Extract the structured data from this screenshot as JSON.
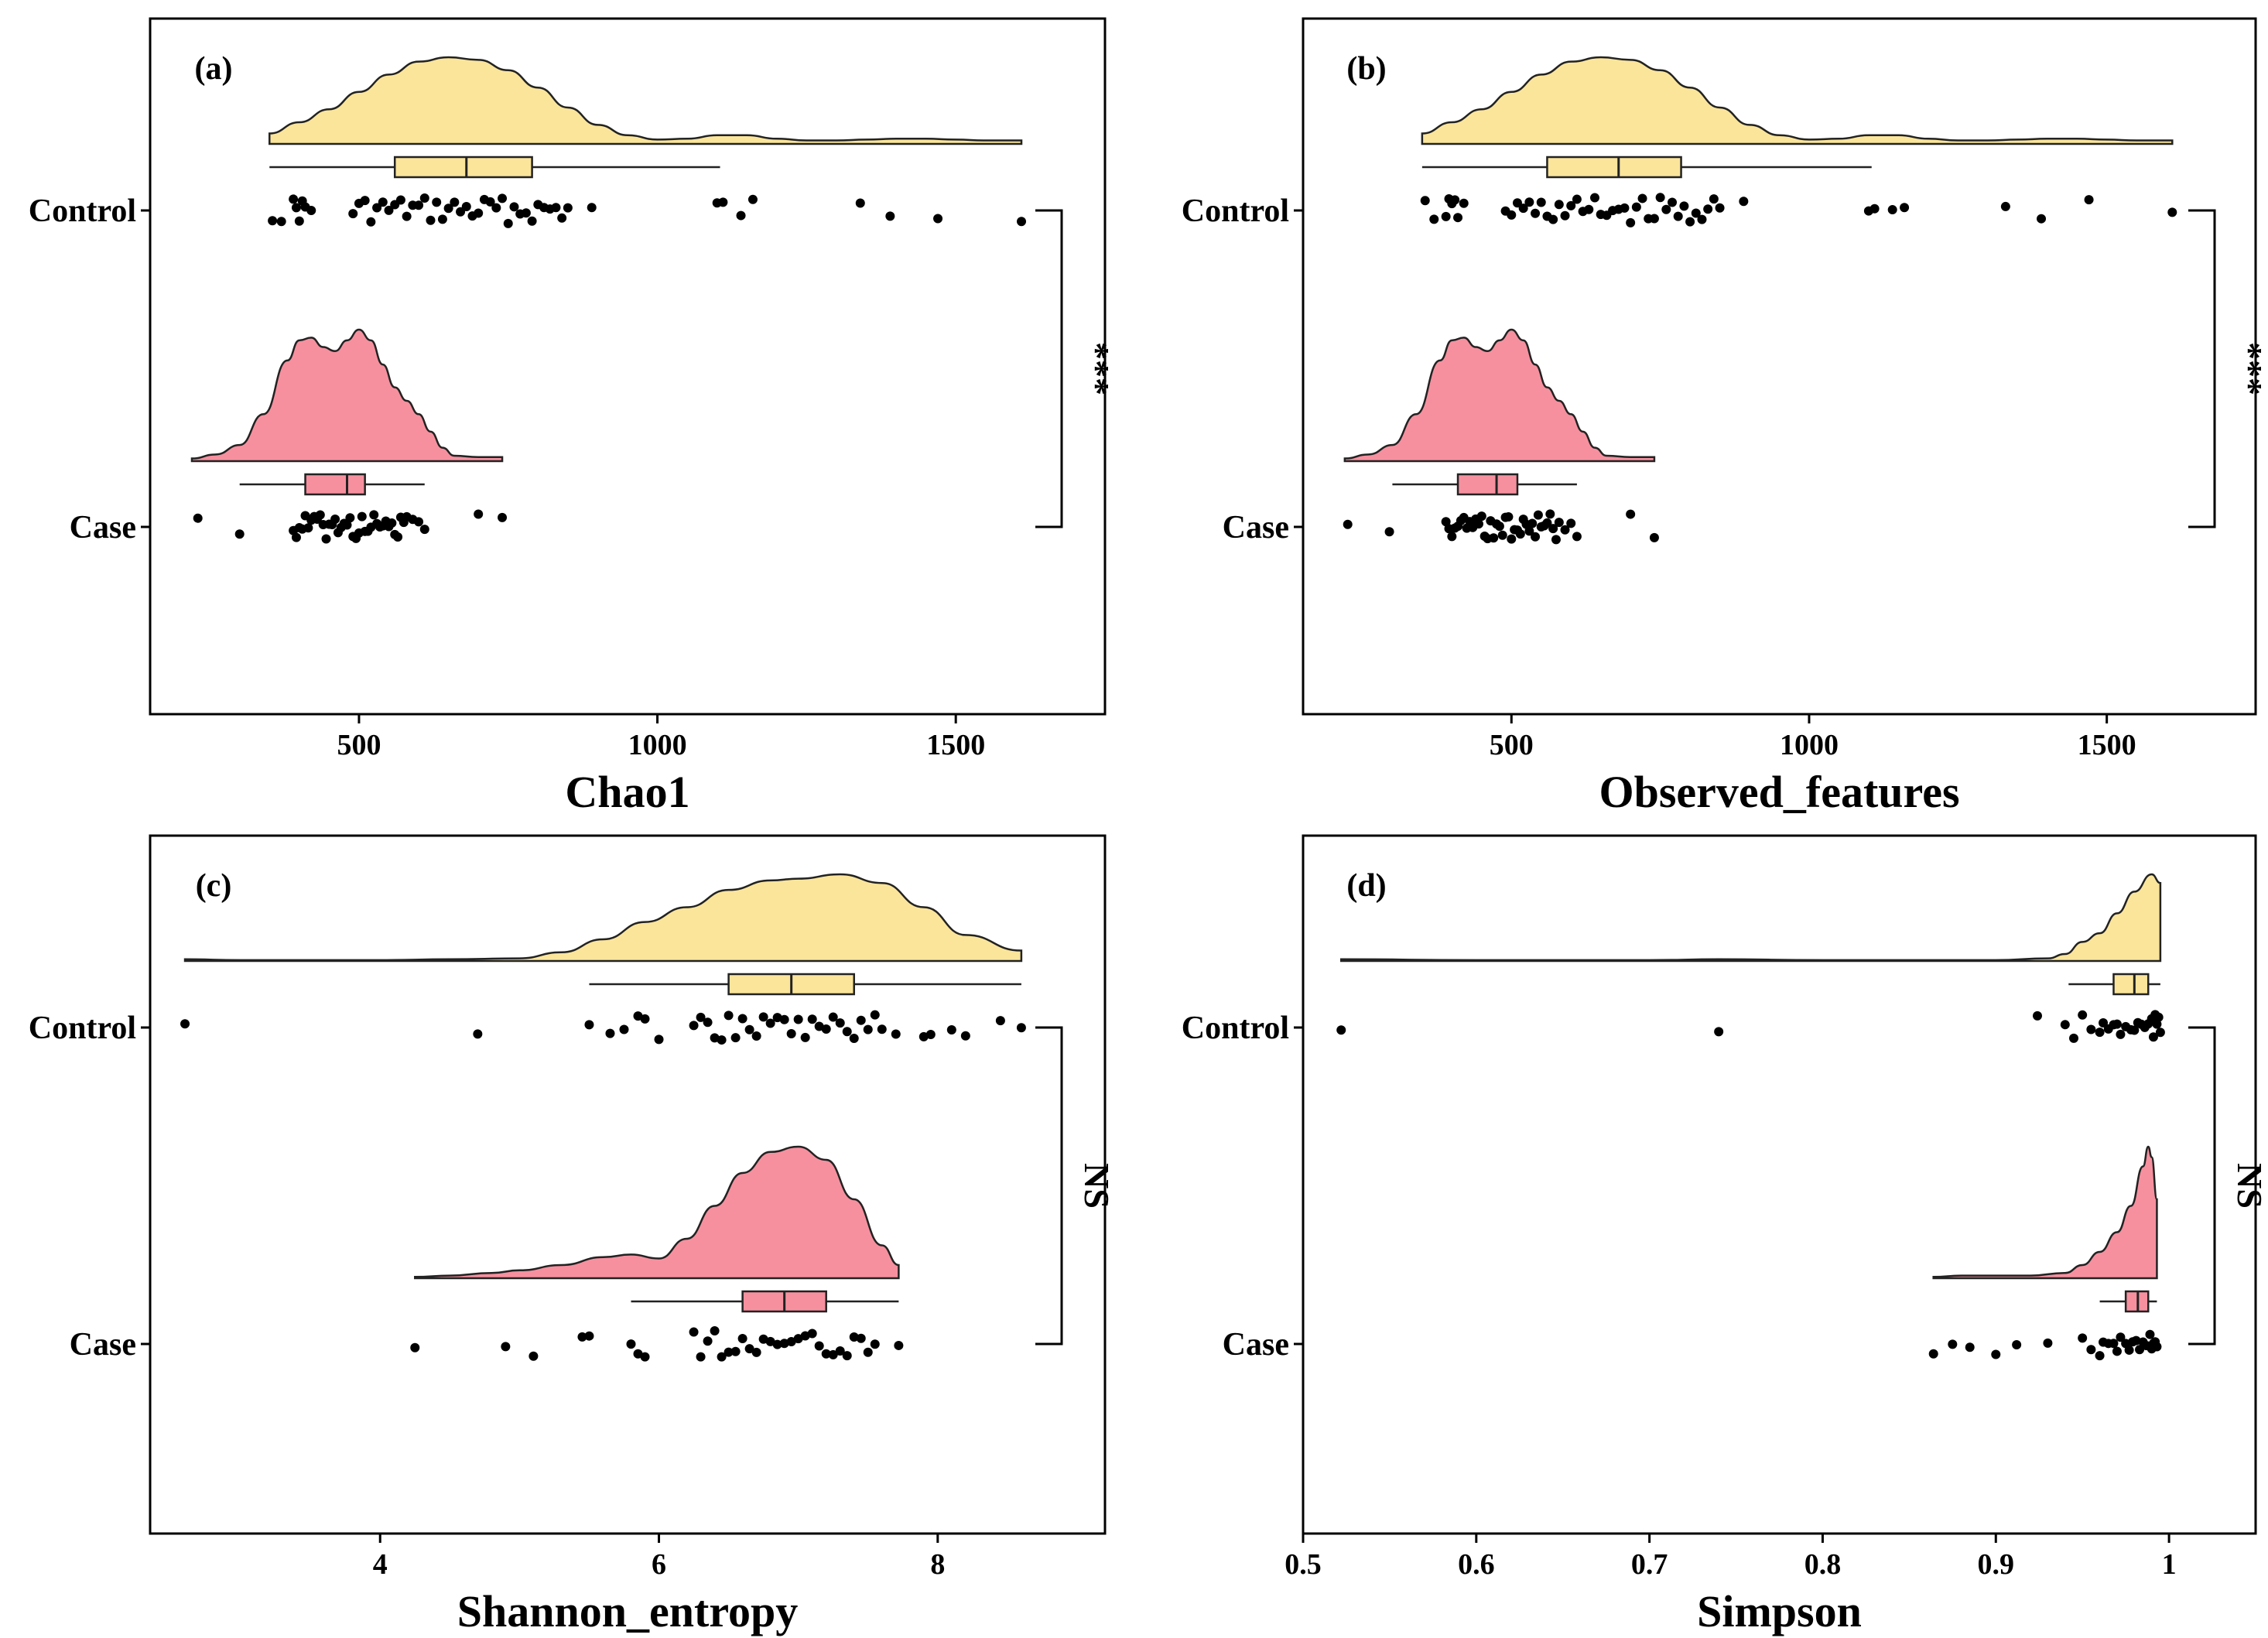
{
  "colors": {
    "control": "#FBE59B",
    "case": "#F6909F",
    "outline": "#222222",
    "points": "#000000"
  },
  "chart_data": [
    {
      "panel": "(a)",
      "type": "raincloud",
      "xlabel": "Chao1",
      "xlim": [
        150,
        1750
      ],
      "xticks": [
        500,
        1000,
        1500
      ],
      "categories": [
        "Control",
        "Case"
      ],
      "significance": "***",
      "groups": [
        {
          "name": "Control",
          "box": {
            "whisker_low": 350,
            "q1": 560,
            "median": 680,
            "q3": 790,
            "whisker_high": 1105
          },
          "density": {
            "x": [
              350,
              400,
              450,
              500,
              550,
              600,
              650,
              700,
              750,
              800,
              850,
              900,
              950,
              1000,
              1050,
              1100,
              1150,
              1200,
              1250,
              1300,
              1350,
              1400,
              1450,
              1500,
              1550,
              1610
            ],
            "y": [
              0.12,
              0.25,
              0.4,
              0.6,
              0.8,
              0.95,
              1.0,
              0.97,
              0.85,
              0.65,
              0.42,
              0.22,
              0.1,
              0.05,
              0.06,
              0.1,
              0.1,
              0.06,
              0.04,
              0.04,
              0.05,
              0.06,
              0.06,
              0.05,
              0.04,
              0.04
            ]
          },
          "points": [
            355,
            370,
            390,
            395,
            400,
            405,
            410,
            420,
            490,
            500,
            510,
            520,
            530,
            540,
            550,
            560,
            570,
            580,
            590,
            600,
            610,
            620,
            630,
            640,
            650,
            660,
            670,
            680,
            690,
            700,
            710,
            720,
            730,
            740,
            750,
            760,
            770,
            780,
            790,
            800,
            810,
            820,
            830,
            840,
            850,
            890,
            1100,
            1110,
            1140,
            1160,
            1340,
            1390,
            1470,
            1610
          ]
        },
        {
          "name": "Case",
          "box": {
            "whisker_low": 300,
            "q1": 410,
            "median": 480,
            "q3": 510,
            "whisker_high": 610
          },
          "density": {
            "x": [
              220,
              260,
              300,
              340,
              380,
              400,
              420,
              440,
              460,
              480,
              500,
              520,
              540,
              560,
              580,
              600,
              620,
              640,
              660,
              700,
              740
            ],
            "y": [
              0.02,
              0.05,
              0.12,
              0.35,
              0.75,
              0.9,
              0.92,
              0.85,
              0.82,
              0.9,
              0.98,
              0.9,
              0.72,
              0.55,
              0.45,
              0.35,
              0.22,
              0.1,
              0.04,
              0.03,
              0.03
            ]
          },
          "points": [
            230,
            300,
            390,
            395,
            400,
            405,
            410,
            415,
            420,
            425,
            430,
            435,
            440,
            445,
            450,
            455,
            460,
            465,
            470,
            475,
            480,
            485,
            490,
            495,
            500,
            505,
            510,
            515,
            520,
            525,
            530,
            535,
            540,
            545,
            550,
            555,
            560,
            565,
            570,
            575,
            580,
            590,
            600,
            610,
            700,
            740
          ]
        }
      ]
    },
    {
      "panel": "(b)",
      "type": "raincloud",
      "xlabel": "Observed_features",
      "xlim": [
        150,
        1750
      ],
      "xticks": [
        500,
        1000,
        1500
      ],
      "categories": [
        "Control",
        "Case"
      ],
      "significance": "***",
      "groups": [
        {
          "name": "Control",
          "box": {
            "whisker_low": 350,
            "q1": 560,
            "median": 680,
            "q3": 785,
            "whisker_high": 1105
          },
          "density": {
            "x": [
              350,
              400,
              450,
              500,
              550,
              600,
              650,
              700,
              750,
              800,
              850,
              900,
              950,
              1000,
              1050,
              1100,
              1150,
              1200,
              1250,
              1300,
              1350,
              1400,
              1450,
              1500,
              1550,
              1610
            ],
            "y": [
              0.12,
              0.25,
              0.4,
              0.6,
              0.8,
              0.95,
              1.0,
              0.97,
              0.85,
              0.65,
              0.42,
              0.22,
              0.1,
              0.05,
              0.06,
              0.1,
              0.1,
              0.06,
              0.04,
              0.04,
              0.05,
              0.06,
              0.06,
              0.05,
              0.04,
              0.04
            ]
          },
          "points": [
            355,
            370,
            390,
            395,
            400,
            405,
            410,
            420,
            490,
            500,
            510,
            520,
            530,
            540,
            550,
            560,
            570,
            580,
            590,
            600,
            610,
            620,
            630,
            640,
            650,
            660,
            670,
            680,
            690,
            700,
            710,
            720,
            730,
            740,
            750,
            760,
            770,
            780,
            790,
            800,
            810,
            820,
            830,
            840,
            850,
            890,
            1100,
            1110,
            1140,
            1160,
            1330,
            1390,
            1470,
            1610
          ]
        },
        {
          "name": "Case",
          "box": {
            "whisker_low": 300,
            "q1": 410,
            "median": 475,
            "q3": 510,
            "whisker_high": 610
          },
          "density": {
            "x": [
              220,
              260,
              300,
              340,
              380,
              400,
              420,
              440,
              460,
              480,
              500,
              520,
              540,
              560,
              580,
              600,
              620,
              640,
              660,
              700,
              740
            ],
            "y": [
              0.02,
              0.05,
              0.12,
              0.35,
              0.75,
              0.9,
              0.92,
              0.85,
              0.82,
              0.9,
              0.98,
              0.9,
              0.72,
              0.55,
              0.45,
              0.35,
              0.22,
              0.1,
              0.04,
              0.03,
              0.03
            ]
          },
          "points": [
            225,
            295,
            390,
            395,
            400,
            405,
            410,
            415,
            420,
            425,
            430,
            435,
            440,
            445,
            450,
            455,
            460,
            465,
            470,
            475,
            480,
            485,
            490,
            495,
            500,
            505,
            510,
            515,
            520,
            525,
            530,
            535,
            540,
            545,
            550,
            555,
            560,
            565,
            570,
            575,
            580,
            590,
            600,
            610,
            700,
            740
          ]
        }
      ]
    },
    {
      "panel": "(c)",
      "type": "raincloud",
      "xlabel": "Shannon_entropy",
      "xlim": [
        2.35,
        9.2
      ],
      "xticks": [
        4,
        6,
        8
      ],
      "categories": [
        "Control",
        "Case"
      ],
      "significance": "NS",
      "groups": [
        {
          "name": "Control",
          "box": {
            "whisker_low": 5.5,
            "q1": 6.5,
            "median": 6.95,
            "q3": 7.4,
            "whisker_high": 8.6
          },
          "density": {
            "x": [
              2.6,
              3.0,
              3.5,
              4.0,
              4.5,
              5.0,
              5.3,
              5.6,
              5.9,
              6.2,
              6.5,
              6.8,
              7.0,
              7.3,
              7.6,
              7.9,
              8.2,
              8.6
            ],
            "y": [
              0.02,
              0.01,
              0.01,
              0.01,
              0.02,
              0.03,
              0.1,
              0.25,
              0.45,
              0.62,
              0.82,
              0.93,
              0.95,
              1.0,
              0.9,
              0.62,
              0.3,
              0.12
            ]
          },
          "points": [
            2.6,
            4.7,
            5.5,
            5.65,
            5.75,
            5.85,
            5.9,
            6.0,
            6.25,
            6.3,
            6.35,
            6.4,
            6.45,
            6.5,
            6.55,
            6.6,
            6.65,
            6.7,
            6.75,
            6.8,
            6.85,
            6.9,
            6.95,
            7.0,
            7.05,
            7.1,
            7.15,
            7.2,
            7.25,
            7.3,
            7.35,
            7.4,
            7.45,
            7.5,
            7.55,
            7.6,
            7.7,
            7.9,
            7.95,
            8.1,
            8.2,
            8.45,
            8.6
          ]
        },
        {
          "name": "Case",
          "box": {
            "whisker_low": 5.8,
            "q1": 6.6,
            "median": 6.9,
            "q3": 7.2,
            "whisker_high": 7.72
          },
          "density": {
            "x": [
              4.25,
              4.5,
              4.8,
              5.0,
              5.3,
              5.6,
              5.8,
              6.0,
              6.2,
              6.4,
              6.6,
              6.8,
              7.0,
              7.2,
              7.4,
              7.6,
              7.72
            ],
            "y": [
              0.01,
              0.02,
              0.04,
              0.06,
              0.1,
              0.16,
              0.18,
              0.15,
              0.3,
              0.55,
              0.8,
              0.96,
              1.0,
              0.9,
              0.6,
              0.25,
              0.1
            ]
          },
          "points": [
            4.25,
            4.9,
            5.1,
            5.45,
            5.5,
            5.8,
            5.85,
            5.9,
            6.25,
            6.3,
            6.35,
            6.4,
            6.45,
            6.5,
            6.55,
            6.6,
            6.65,
            6.7,
            6.75,
            6.8,
            6.85,
            6.9,
            6.95,
            7.0,
            7.05,
            7.1,
            7.15,
            7.2,
            7.25,
            7.3,
            7.35,
            7.4,
            7.45,
            7.5,
            7.55,
            7.72
          ]
        }
      ]
    },
    {
      "panel": "(d)",
      "type": "raincloud",
      "xlabel": "Simpson",
      "xlim": [
        0.5,
        1.05
      ],
      "xticks": [
        0.5,
        0.6,
        0.7,
        0.8,
        0.9,
        1.0
      ],
      "categories": [
        "Control",
        "Case"
      ],
      "significance": "NS",
      "groups": [
        {
          "name": "Control",
          "box": {
            "whisker_low": 0.942,
            "q1": 0.968,
            "median": 0.98,
            "q3": 0.988,
            "whisker_high": 0.995
          },
          "density": {
            "x": [
              0.522,
              0.6,
              0.7,
              0.74,
              0.8,
              0.9,
              0.93,
              0.94,
              0.95,
              0.96,
              0.97,
              0.98,
              0.99,
              0.995
            ],
            "y": [
              0.02,
              0.01,
              0.01,
              0.02,
              0.01,
              0.01,
              0.03,
              0.08,
              0.22,
              0.32,
              0.55,
              0.8,
              1.0,
              0.9
            ]
          },
          "points": [
            0.522,
            0.74,
            0.924,
            0.94,
            0.945,
            0.95,
            0.955,
            0.96,
            0.962,
            0.965,
            0.968,
            0.97,
            0.972,
            0.975,
            0.978,
            0.98,
            0.982,
            0.984,
            0.986,
            0.988,
            0.99,
            0.991,
            0.992,
            0.993,
            0.994,
            0.995
          ]
        },
        {
          "name": "Case",
          "box": {
            "whisker_low": 0.96,
            "q1": 0.975,
            "median": 0.982,
            "q3": 0.988,
            "whisker_high": 0.993
          },
          "density": {
            "x": [
              0.864,
              0.88,
              0.9,
              0.92,
              0.94,
              0.95,
              0.96,
              0.97,
              0.978,
              0.985,
              0.988,
              0.99,
              0.993
            ],
            "y": [
              0.01,
              0.02,
              0.02,
              0.02,
              0.04,
              0.1,
              0.2,
              0.35,
              0.55,
              0.85,
              1.0,
              0.92,
              0.6
            ]
          },
          "points": [
            0.864,
            0.875,
            0.885,
            0.9,
            0.912,
            0.93,
            0.95,
            0.955,
            0.96,
            0.962,
            0.965,
            0.968,
            0.97,
            0.972,
            0.975,
            0.977,
            0.979,
            0.981,
            0.983,
            0.985,
            0.987,
            0.989,
            0.99,
            0.991,
            0.992,
            0.993
          ]
        }
      ]
    }
  ]
}
